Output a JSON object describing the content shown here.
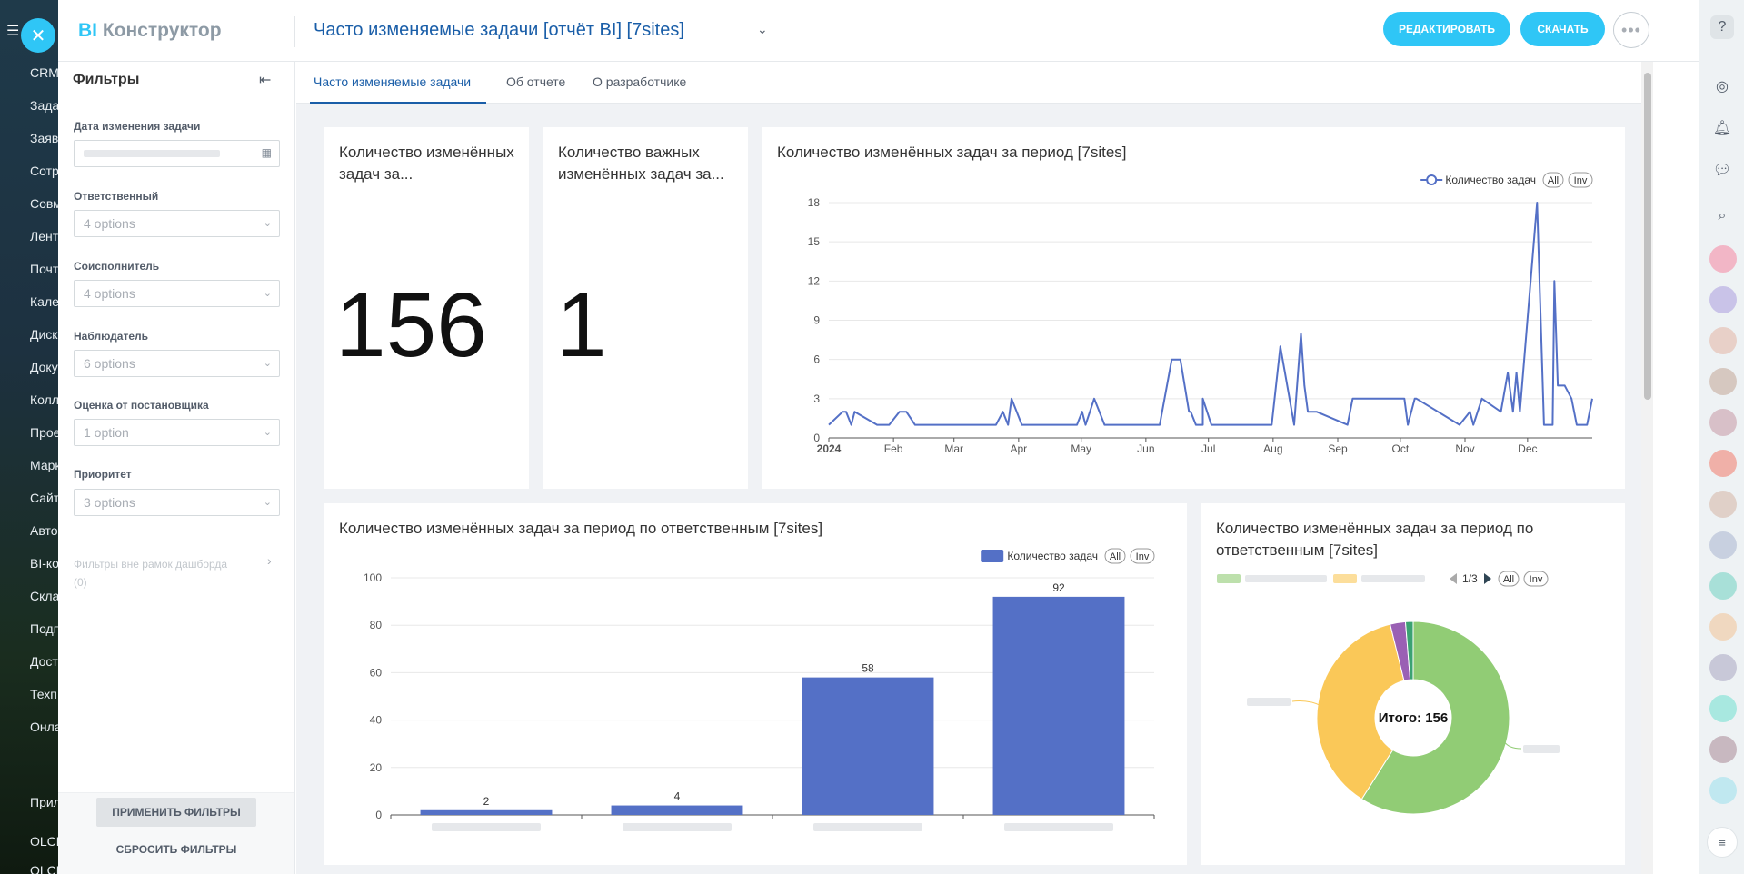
{
  "app_nav": {
    "items": [
      "CRM",
      "Зада",
      "Заяв",
      "Сотр",
      "Совм",
      "Лент",
      "Почт",
      "Кале",
      "Диск",
      "Доку",
      "Колл",
      "Прое",
      "Марк",
      "Сайт",
      "Авто",
      "BI-ко",
      "Скла",
      "Подп",
      "Дост",
      "Техп",
      "Онла",
      "Прил",
      "OLCH",
      "OLCH"
    ]
  },
  "header": {
    "logo_bi": "BI",
    "logo_text": "Конструктор",
    "title": "Часто изменяемые задачи [отчёт BI] [7sites]",
    "edit_button": "РЕДАКТИРОВАТЬ",
    "download_button": "СКАЧАТЬ",
    "more_button": "•••"
  },
  "filters": {
    "title": "Фильтры",
    "fields": [
      {
        "label": "Дата изменения задачи",
        "value": "",
        "type": "date"
      },
      {
        "label": "Ответственный",
        "value": "4 options",
        "type": "select"
      },
      {
        "label": "Соисполнитель",
        "value": "4 options",
        "type": "select"
      },
      {
        "label": "Наблюдатель",
        "value": "6 options",
        "type": "select"
      },
      {
        "label": "Оценка от постановщика",
        "value": "1 option",
        "type": "select"
      },
      {
        "label": "Приоритет",
        "value": "3 options",
        "type": "select"
      }
    ],
    "outside_label": "Фильтры вне рамок дашборда",
    "outside_count": "(0)",
    "apply_button": "ПРИМЕНИТЬ ФИЛЬТРЫ",
    "reset_button": "СБРОСИТЬ ФИЛЬТРЫ"
  },
  "tabs": [
    {
      "label": "Часто изменяемые задачи",
      "active": true
    },
    {
      "label": "Об отчете",
      "active": false
    },
    {
      "label": "О разработчике",
      "active": false
    }
  ],
  "kpi": [
    {
      "title": "Количество изменённых задач за...",
      "value": "156"
    },
    {
      "title": "Количество важных изменённых задач за...",
      "value": "1"
    }
  ],
  "chart_data": [
    {
      "type": "line",
      "title": "Количество изменённых задач за период [7sites]",
      "legend": [
        "Количество задач"
      ],
      "legend_controls": [
        "All",
        "Inv"
      ],
      "legend_position": "top-right",
      "x_tick_labels": [
        "2024",
        "Feb",
        "Mar",
        "Apr",
        "May",
        "Jun",
        "Jul",
        "Aug",
        "Sep",
        "Oct",
        "Nov",
        "Dec"
      ],
      "y_ticks": [
        0,
        3,
        6,
        9,
        12,
        15,
        18
      ],
      "ylim": [
        0,
        18
      ],
      "xlim_days": [
        0,
        360
      ],
      "grid": true,
      "color": "#5470c6",
      "series": [
        {
          "name": "Количество задач",
          "points": [
            [
              0,
              1
            ],
            [
              8,
              2
            ],
            [
              10,
              2
            ],
            [
              13,
              1
            ],
            [
              15,
              2
            ],
            [
              28,
              1
            ],
            [
              35,
              1
            ],
            [
              41,
              2
            ],
            [
              45,
              2
            ],
            [
              50,
              1
            ],
            [
              97,
              1
            ],
            [
              101,
              2
            ],
            [
              104,
              1
            ],
            [
              106,
              3
            ],
            [
              112,
              1
            ],
            [
              144,
              1
            ],
            [
              147,
              2
            ],
            [
              149,
              1
            ],
            [
              154,
              3
            ],
            [
              160,
              1
            ],
            [
              175,
              1
            ],
            [
              179,
              1
            ],
            [
              183,
              1
            ],
            [
              192,
              1
            ],
            [
              199,
              6
            ],
            [
              204,
              6
            ],
            [
              209,
              2
            ],
            [
              210,
              2
            ],
            [
              213,
              1
            ],
            [
              217,
              1
            ],
            [
              217,
              3
            ],
            [
              222,
              1
            ],
            [
              257,
              1
            ],
            [
              262,
              7
            ],
            [
              270,
              1
            ],
            [
              274,
              8
            ],
            [
              276,
              4
            ],
            [
              278,
              2
            ],
            [
              283,
              2
            ],
            [
              301,
              1
            ],
            [
              304,
              3
            ],
            [
              308,
              3
            ],
            [
              334,
              3
            ],
            [
              336,
              1
            ],
            [
              340,
              3
            ],
            [
              341,
              3
            ],
            [
              366,
              1
            ],
            [
              372,
              2
            ],
            [
              374,
              1
            ],
            [
              379,
              3
            ],
            [
              390,
              2
            ],
            [
              394,
              5
            ],
            [
              397,
              2
            ],
            [
              399,
              5
            ],
            [
              401,
              2
            ],
            [
              411,
              18
            ],
            [
              415,
              1
            ],
            [
              420,
              1
            ],
            [
              421,
              12
            ],
            [
              423,
              4
            ],
            [
              425,
              4
            ],
            [
              427,
              4
            ],
            [
              431,
              3
            ],
            [
              434,
              1
            ],
            [
              437,
              1
            ],
            [
              440,
              1
            ],
            [
              443,
              3
            ]
          ]
        }
      ]
    },
    {
      "type": "bar",
      "title": "Количество изменённых задач за период по ответственным [7sites]",
      "legend": [
        "Количество задач"
      ],
      "legend_controls": [
        "All",
        "Inv"
      ],
      "legend_position": "top-right",
      "categories": [
        "",
        "",
        "",
        ""
      ],
      "values": [
        2,
        4,
        58,
        92
      ],
      "ylim": [
        0,
        100
      ],
      "y_ticks": [
        0,
        20,
        40,
        60,
        80,
        100
      ],
      "color": "#5470c6",
      "grid": true
    },
    {
      "type": "pie",
      "title": "Количество изменённых задач за период по ответственным [7sites]",
      "legend_page": "1/3",
      "legend_controls": [
        "All",
        "Inv"
      ],
      "center_label": "Итого: 156",
      "values": [
        92,
        58,
        4,
        2
      ],
      "colors": [
        "#91cc75",
        "#fac858",
        "#9a60b4",
        "#3ba272"
      ]
    }
  ],
  "colors": {
    "accent": "#2fc6f6",
    "title_blue": "#1a5ea8",
    "series_blue": "#5470c6"
  }
}
